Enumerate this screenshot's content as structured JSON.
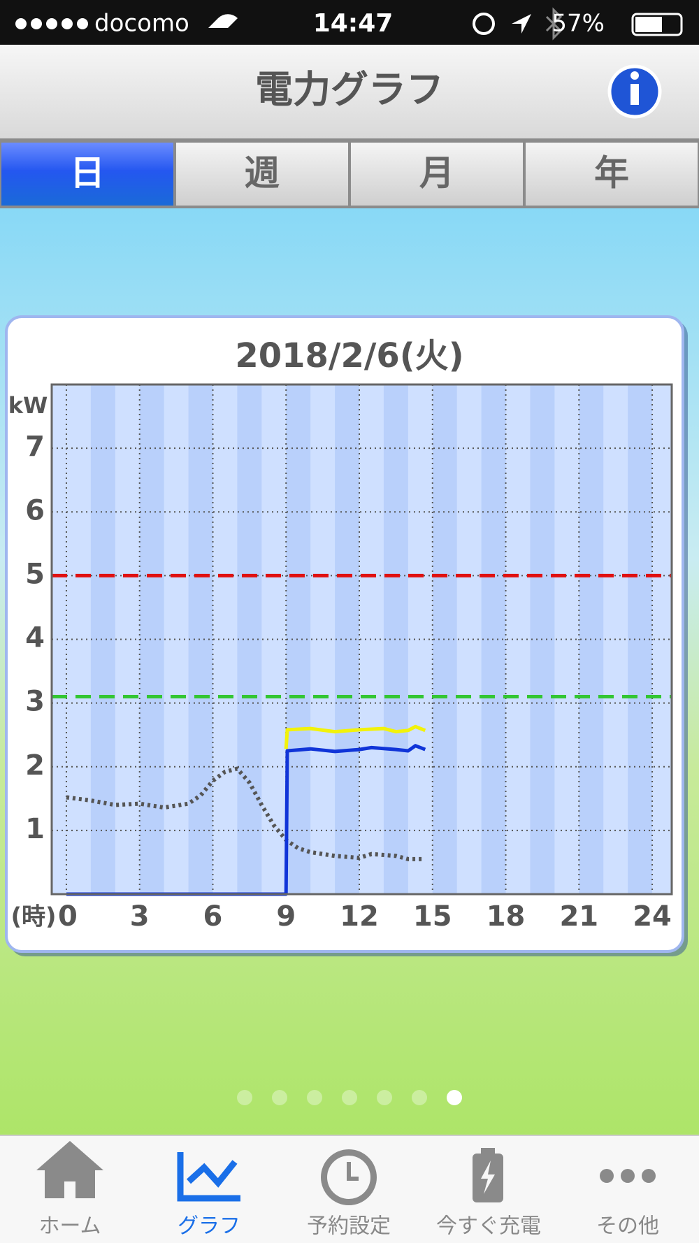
{
  "status_bar": {
    "carrier": "docomo",
    "time": "14:47",
    "battery": "57%"
  },
  "header": {
    "title": "電力グラフ"
  },
  "tabs": [
    "日",
    "週",
    "月",
    "年"
  ],
  "chart_data": {
    "type": "line",
    "title": "2018/2/6(火)",
    "y_label": "kW",
    "x_label": "(時)",
    "xlim": [
      -0.6,
      24.8
    ],
    "ylim": [
      0,
      8
    ],
    "xticks": [
      0,
      3,
      6,
      9,
      12,
      15,
      18,
      21,
      24
    ],
    "yticks": [
      1,
      2,
      3,
      4,
      5,
      6,
      7
    ],
    "grid": true,
    "reference_lines": [
      {
        "value": 5,
        "color": "#e01010"
      },
      {
        "value": 3.1,
        "color": "#33c633"
      }
    ],
    "series": [
      {
        "color": "#555555",
        "style": "dotted",
        "x": [
          0,
          1,
          2,
          3,
          4,
          5,
          5.5,
          6,
          6.5,
          7,
          7.5,
          8,
          8.5,
          9,
          9.5,
          10,
          11,
          12,
          12.5,
          13.5,
          14,
          14.6
        ],
        "values": [
          1.52,
          1.47,
          1.4,
          1.42,
          1.36,
          1.42,
          1.55,
          1.78,
          1.92,
          1.97,
          1.75,
          1.4,
          1.08,
          0.85,
          0.72,
          0.66,
          0.6,
          0.57,
          0.63,
          0.6,
          0.55,
          0.55
        ]
      },
      {
        "color": "#f2f20a",
        "style": "solid",
        "x": [
          9,
          9.05,
          10,
          11,
          12,
          13,
          13.5,
          14,
          14.3,
          14.7
        ],
        "values": [
          2.28,
          2.58,
          2.6,
          2.55,
          2.58,
          2.6,
          2.55,
          2.57,
          2.63,
          2.57
        ]
      },
      {
        "color": "#1034d8",
        "style": "solid",
        "x": [
          0,
          9,
          9.05,
          10,
          11,
          12,
          12.5,
          13.5,
          14,
          14.3,
          14.7
        ],
        "values": [
          0,
          0,
          2.25,
          2.28,
          2.24,
          2.27,
          2.3,
          2.27,
          2.25,
          2.33,
          2.27
        ]
      }
    ]
  },
  "nav": [
    "ホーム",
    "グラフ",
    "予約設定",
    "今すぐ充電",
    "その他"
  ]
}
